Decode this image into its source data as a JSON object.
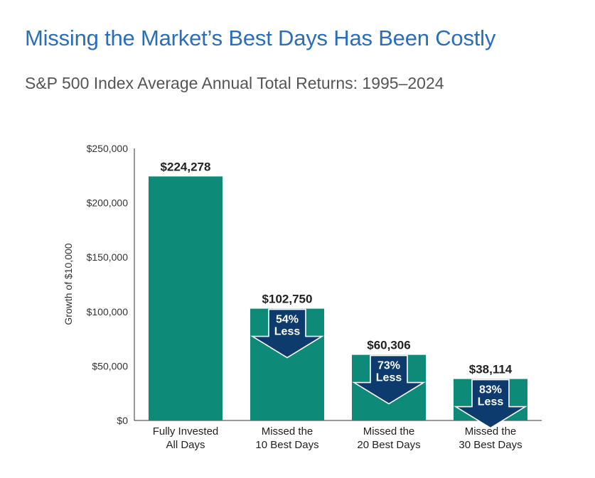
{
  "title": "Missing the Market’s Best Days Has Been Costly",
  "subtitle": "S&P 500 Index Average Annual Total Returns: 1995–2024",
  "colors": {
    "title": "#2a6ebb",
    "bar": "#0e8a78",
    "arrow": "#0d3b6e",
    "text": "#222222"
  },
  "chart_data": {
    "type": "bar",
    "ylabel": "Growth of $10,000",
    "ylim": [
      0,
      250000
    ],
    "yticks": [
      {
        "value": 0,
        "label": "$0"
      },
      {
        "value": 50000,
        "label": "$50,000"
      },
      {
        "value": 100000,
        "label": "$100,000"
      },
      {
        "value": 150000,
        "label": "$150,000"
      },
      {
        "value": 200000,
        "label": "$200,000"
      },
      {
        "value": 250000,
        "label": "$250,000"
      }
    ],
    "bars": [
      {
        "line1": "Fully Invested",
        "line2": "All Days",
        "value": 224278,
        "label": "$224,278",
        "arrow": null
      },
      {
        "line1": "Missed the",
        "line2": "10 Best Days",
        "value": 102750,
        "label": "$102,750",
        "arrow": {
          "pct": "54%",
          "word": "Less"
        }
      },
      {
        "line1": "Missed the",
        "line2": "20 Best Days",
        "value": 60306,
        "label": "$60,306",
        "arrow": {
          "pct": "73%",
          "word": "Less"
        }
      },
      {
        "line1": "Missed the",
        "line2": "30 Best Days",
        "value": 38114,
        "label": "$38,114",
        "arrow": {
          "pct": "83%",
          "word": "Less"
        }
      }
    ]
  }
}
